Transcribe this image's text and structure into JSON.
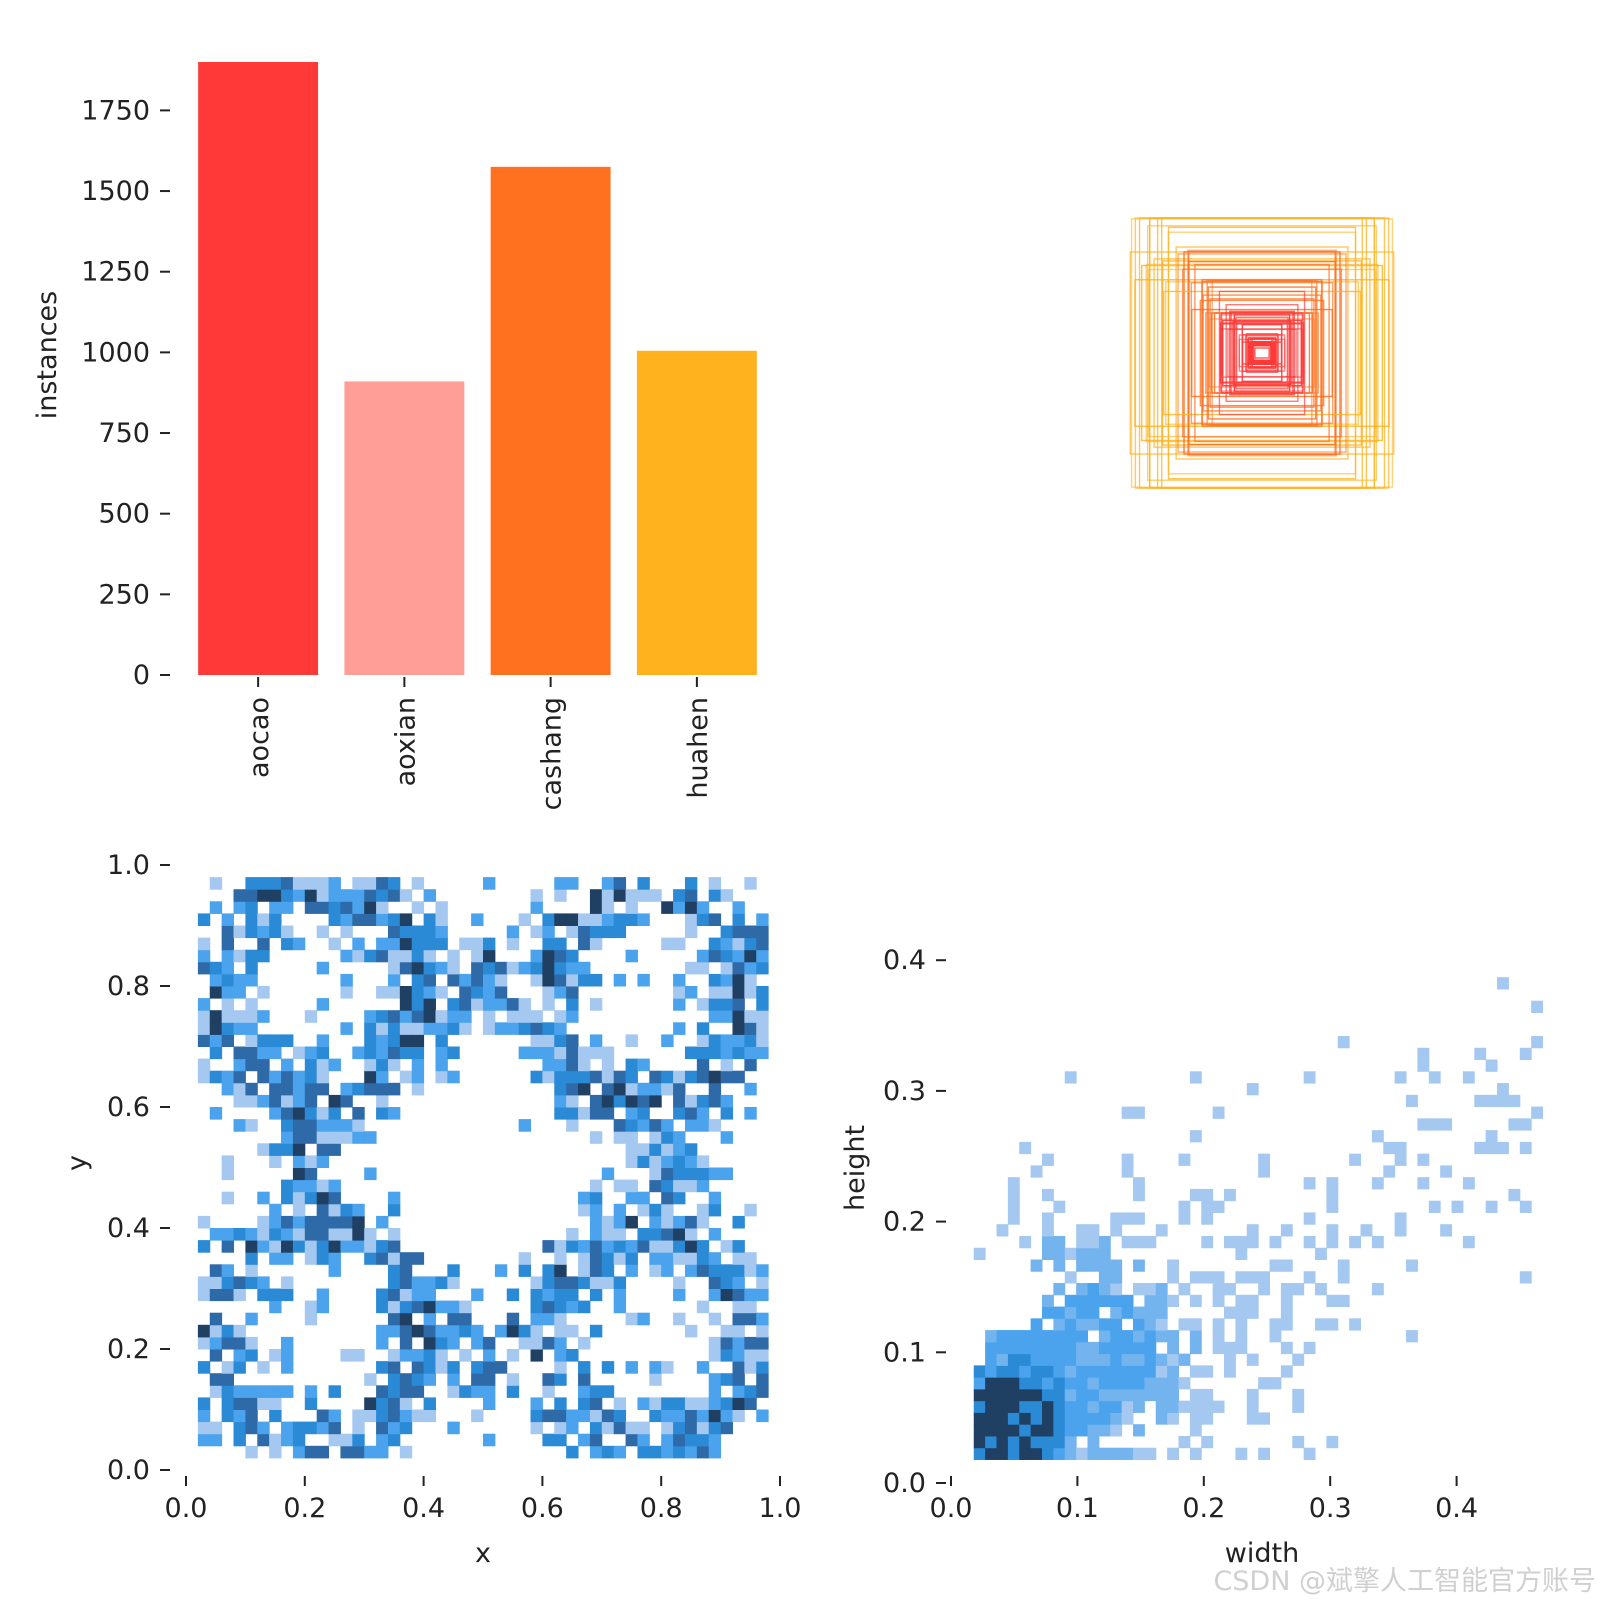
{
  "watermark": "CSDN @斌擎人工智能官方账号",
  "chart_data": [
    {
      "type": "bar",
      "ylabel": "instances",
      "categories": [
        "aocao",
        "aoxian",
        "cashang",
        "huahen"
      ],
      "values": [
        1900,
        910,
        1575,
        1005
      ],
      "colors": [
        "#ff3838",
        "#ff9d97",
        "#ff701f",
        "#ffb21d"
      ],
      "yticks": [
        0,
        250,
        500,
        750,
        1000,
        1250,
        1500,
        1750
      ],
      "ylim": [
        0,
        1900
      ]
    },
    {
      "type": "boxes",
      "title": "",
      "colors": [
        "#ff3838",
        "#ff701f",
        "#ffb21d"
      ]
    },
    {
      "type": "heatmap",
      "xlabel": "x",
      "ylabel": "y",
      "xlim": [
        0,
        1
      ],
      "ylim": [
        0,
        1
      ],
      "xticks": [
        0.0,
        0.2,
        0.4,
        0.6,
        0.8,
        1.0
      ],
      "yticks": [
        0.0,
        0.2,
        0.4,
        0.6,
        0.8,
        1.0
      ],
      "xtick_labels": [
        "0.0",
        "0.2",
        "0.4",
        "0.6",
        "0.8",
        "1.0"
      ],
      "ytick_labels": [
        "0.0",
        "0.2",
        "0.4",
        "0.6",
        "0.8",
        "1.0"
      ],
      "palette": [
        "#a5c8f0",
        "#4aa3ec",
        "#2b8ad6",
        "#2f6aa8",
        "#1f3f63"
      ],
      "description": "2D histogram of box centers"
    },
    {
      "type": "heatmap",
      "xlabel": "width",
      "ylabel": "height",
      "xlim": [
        0,
        0.48
      ],
      "ylim": [
        0,
        0.48
      ],
      "xticks": [
        0.0,
        0.1,
        0.2,
        0.3,
        0.4
      ],
      "yticks": [
        0.0,
        0.1,
        0.2,
        0.3,
        0.4
      ],
      "xtick_labels": [
        "0.0",
        "0.1",
        "0.2",
        "0.3",
        "0.4"
      ],
      "ytick_labels": [
        "0.0",
        "0.1",
        "0.2",
        "0.3",
        "0.4"
      ],
      "palette": [
        "#a5c8f0",
        "#74b4ee",
        "#4aa3ec",
        "#2b8ad6",
        "#1f3f63"
      ],
      "description": "2D histogram of box width vs height"
    }
  ]
}
